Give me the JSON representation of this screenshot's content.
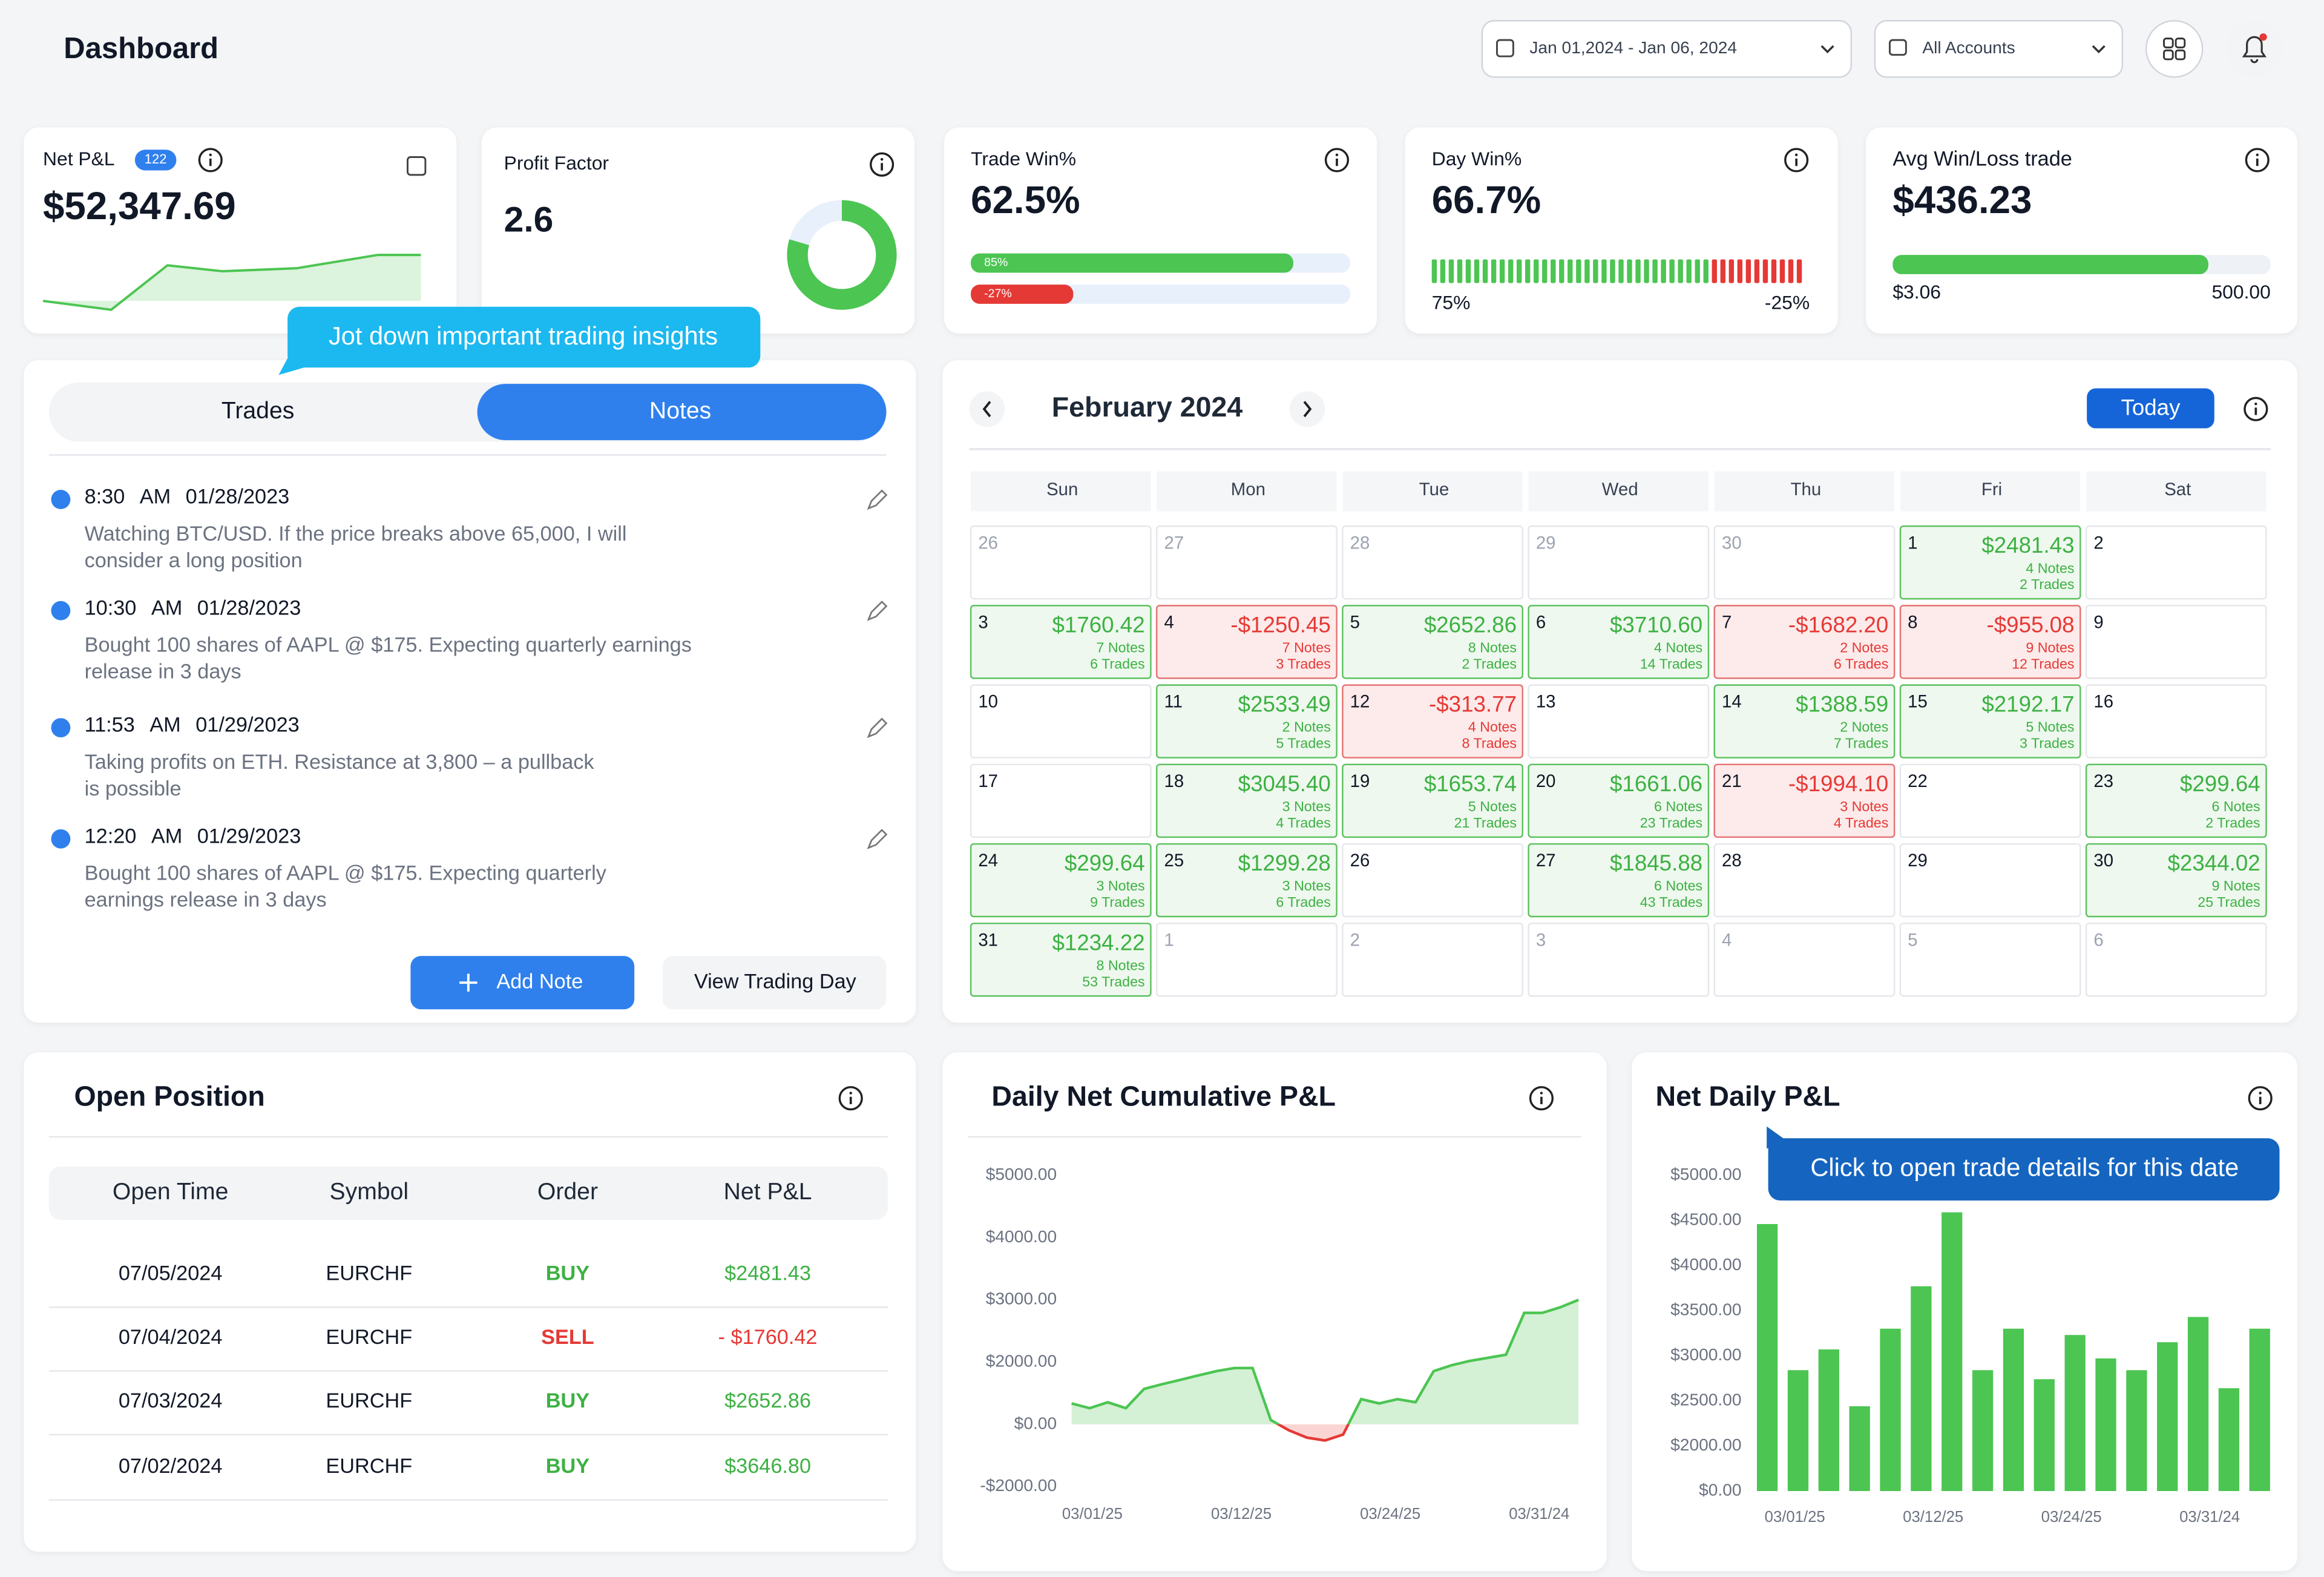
{
  "header": {
    "title": "Dashboard",
    "date_range": "Jan 01,2024 - Jan 06, 2024",
    "account": "All Accounts"
  },
  "stats": {
    "net_pnl": {
      "label": "Net P&L",
      "badge": "122",
      "value": "$52,347.69"
    },
    "profit_factor": {
      "label": "Profit Factor",
      "value": "2.6"
    },
    "trade_win": {
      "label": "Trade Win%",
      "value": "62.5%",
      "win": {
        "value": 85,
        "label": "85%"
      },
      "loss": {
        "value": -27,
        "label": "-27%"
      }
    },
    "day_win": {
      "label": "Day Win%",
      "value": "66.7%",
      "win": {
        "value": 75,
        "label": "75%"
      },
      "loss": {
        "value": -25,
        "label": "-25%"
      }
    },
    "avg_trade": {
      "label": "Avg Win/Loss trade",
      "value": "$436.23",
      "min": "$3.06",
      "max": "500.00"
    }
  },
  "notes_panel": {
    "tooltip": "Jot down important trading insights",
    "tabs": [
      "Trades",
      "Notes"
    ],
    "notes": [
      {
        "time": "8:30",
        "ampm": "AM",
        "date": "01/28/2023",
        "lines": [
          "Watching BTC/USD. If the price breaks above 65,000, I will",
          "consider a long position"
        ]
      },
      {
        "time": "10:30",
        "ampm": "AM",
        "date": "01/28/2023",
        "lines": [
          "Bought 100 shares of AAPL @ $175. Expecting quarterly earnings",
          "release in 3 days"
        ]
      },
      {
        "time": "11:53",
        "ampm": "AM",
        "date": "01/29/2023",
        "lines": [
          "Taking profits on ETH. Resistance at 3,800 – a pullback",
          "is possible"
        ]
      },
      {
        "time": "12:20",
        "ampm": "AM",
        "date": "01/29/2023",
        "lines": [
          "Bought 100 shares of AAPL @ $175. Expecting quarterly",
          "earnings release in 3 days"
        ]
      }
    ],
    "add_note": "Add Note",
    "view_day": "View Trading Day"
  },
  "calendar": {
    "month": "February 2024",
    "today": "Today",
    "weekdays": [
      "Sun",
      "Mon",
      "Tue",
      "Wed",
      "Thu",
      "Fri",
      "Sat"
    ],
    "cells": [
      {
        "day": "26"
      },
      {
        "day": "27"
      },
      {
        "day": "28"
      },
      {
        "day": "29"
      },
      {
        "day": "30"
      },
      {
        "day": "1",
        "pnl": "$2481.43",
        "notes": "4 Notes",
        "trades": "2 Trades"
      },
      {
        "day": "2"
      },
      {
        "day": "3",
        "pnl": "$1760.42",
        "notes": "7 Notes",
        "trades": "6 Trades"
      },
      {
        "day": "4",
        "pnl": "-$1250.45",
        "notes": "7 Notes",
        "trades": "3 Trades"
      },
      {
        "day": "5",
        "pnl": "$2652.86",
        "notes": "8 Notes",
        "trades": "2 Trades"
      },
      {
        "day": "6",
        "pnl": "$3710.60",
        "notes": "4 Notes",
        "trades": "14 Trades"
      },
      {
        "day": "7",
        "pnl": "-$1682.20",
        "notes": "2 Notes",
        "trades": "6 Trades"
      },
      {
        "day": "8",
        "pnl": "-$955.08",
        "notes": "9 Notes",
        "trades": "12 Trades"
      },
      {
        "day": "9"
      },
      {
        "day": "10"
      },
      {
        "day": "11",
        "pnl": "$2533.49",
        "notes": "2 Notes",
        "trades": "5 Trades"
      },
      {
        "day": "12",
        "pnl": "-$313.77",
        "notes": "4 Notes",
        "trades": "8 Trades"
      },
      {
        "day": "13"
      },
      {
        "day": "14",
        "pnl": "$1388.59",
        "notes": "2 Notes",
        "trades": "7 Trades"
      },
      {
        "day": "15",
        "pnl": "$2192.17",
        "notes": "5 Notes",
        "trades": "3 Trades"
      },
      {
        "day": "16"
      },
      {
        "day": "17"
      },
      {
        "day": "18",
        "pnl": "$3045.40",
        "notes": "3 Notes",
        "trades": "4 Trades"
      },
      {
        "day": "19",
        "pnl": "$1653.74",
        "notes": "5 Notes",
        "trades": "21 Trades"
      },
      {
        "day": "20",
        "pnl": "$1661.06",
        "notes": "6 Notes",
        "trades": "23 Trades"
      },
      {
        "day": "21",
        "pnl": "-$1994.10",
        "notes": "3 Notes",
        "trades": "4 Trades"
      },
      {
        "day": "22"
      },
      {
        "day": "23",
        "pnl": "$299.64",
        "notes": "6 Notes",
        "trades": "2 Trades"
      },
      {
        "day": "24",
        "pnl": "$299.64",
        "notes": "3 Notes",
        "trades": "9 Trades"
      },
      {
        "day": "25",
        "pnl": "$1299.28",
        "notes": "3 Notes",
        "trades": "6 Trades"
      },
      {
        "day": "26"
      },
      {
        "day": "27",
        "pnl": "$1845.88",
        "notes": "6 Notes",
        "trades": "43 Trades"
      },
      {
        "day": "28"
      },
      {
        "day": "29"
      },
      {
        "day": "30",
        "pnl": "$2344.02",
        "notes": "9 Notes",
        "trades": "25 Trades"
      },
      {
        "day": "31",
        "pnl": "$1234.22",
        "notes": "8 Notes",
        "trades": "53 Trades"
      },
      {
        "day": "1"
      },
      {
        "day": "2"
      },
      {
        "day": "3"
      },
      {
        "day": "4"
      },
      {
        "day": "5"
      },
      {
        "day": "6"
      }
    ]
  },
  "open_position": {
    "title": "Open Position",
    "headers": [
      "Open Time",
      "Symbol",
      "Order",
      "Net P&L"
    ],
    "rows": [
      [
        "07/05/2024",
        "EURCHF",
        "BUY",
        "$2481.43"
      ],
      [
        "07/04/2024",
        "EURCHF",
        "SELL",
        "- $1760.42"
      ],
      [
        "07/03/2024",
        "EURCHF",
        "BUY",
        "$2652.86"
      ],
      [
        "07/02/2024",
        "EURCHF",
        "BUY",
        "$3646.80"
      ]
    ]
  },
  "chart_data": [
    {
      "type": "area",
      "title": "Daily Net Cumulative P&L",
      "color": "#4cc552",
      "negative_color": "#e53935",
      "values": [
        670,
        520,
        710,
        520,
        1140,
        1290,
        1430,
        1570,
        1710,
        1810,
        1810,
        140,
        -190,
        -430,
        -520,
        -330,
        810,
        670,
        810,
        710,
        1710,
        1900,
        2020,
        2070,
        2120,
        2790,
        2790,
        2880,
        3000
      ],
      "x_tick_labels": [
        "03/01/25",
        "03/12/25",
        "03/24/25",
        "03/31/24"
      ],
      "ylim": [
        -2000,
        5000
      ],
      "yticks": [
        {
          "value": 5000,
          "label": "$5000.00"
        },
        {
          "value": 4000,
          "label": "$4000.00"
        },
        {
          "value": 3000,
          "label": "$3000.00"
        },
        {
          "value": 2000,
          "label": "$2000.00"
        },
        {
          "value": 0,
          "label": "$0.00"
        },
        {
          "value": -2000,
          "label": "-$2000.00"
        }
      ]
    },
    {
      "type": "bar",
      "title": "Net Daily P&L",
      "tooltip": "Click to open trade details for this date",
      "color": "#4cc552",
      "categories": [
        null,
        null,
        null,
        null,
        null,
        null,
        null,
        null,
        null,
        null,
        null,
        null,
        null,
        null,
        null,
        null,
        null
      ],
      "values": [
        4460,
        2840,
        3070,
        2440,
        3300,
        3770,
        4590,
        2840,
        3300,
        2740,
        3230,
        2970,
        2840,
        3150,
        3430,
        2640,
        3300
      ],
      "x_tick_labels": [
        "03/01/25",
        "03/12/25",
        "03/24/25",
        "03/31/24"
      ],
      "ylim": [
        0,
        5000
      ],
      "yticks": [
        {
          "value": 5000,
          "label": "$5000.00"
        },
        {
          "value": 4500,
          "label": "$4500.00"
        },
        {
          "value": 4000,
          "label": "$4000.00"
        },
        {
          "value": 3500,
          "label": "$3500.00"
        },
        {
          "value": 3000,
          "label": "$3000.00"
        },
        {
          "value": 2500,
          "label": "$2500.00"
        },
        {
          "value": 2000,
          "label": "$2000.00"
        },
        {
          "value": 0,
          "label": "$0.00"
        }
      ]
    }
  ]
}
